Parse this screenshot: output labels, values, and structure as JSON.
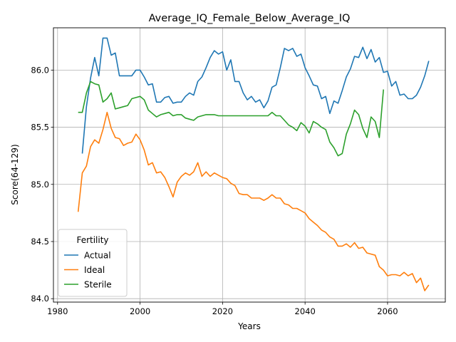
{
  "chart_data": {
    "type": "line",
    "title": "Average_IQ_Female_Below_Average_IQ",
    "xlabel": "Years",
    "ylabel": "Score(64-129)",
    "xlim": [
      1979,
      2074
    ],
    "ylim": [
      83.97,
      86.37
    ],
    "xticks": [
      1980,
      2000,
      2020,
      2040,
      2060
    ],
    "yticks": [
      84.0,
      84.5,
      85.0,
      85.5,
      86.0
    ],
    "grid": true,
    "legend": {
      "title": "Fertility",
      "placement": "lower-left"
    },
    "series": [
      {
        "name": "Actual",
        "color": "#1f77b4",
        "x": [
          1986,
          1987,
          1988,
          1989,
          1990,
          1991,
          1992,
          1993,
          1994,
          1995,
          1996,
          1997,
          1998,
          1999,
          2000,
          2001,
          2002,
          2003,
          2004,
          2005,
          2006,
          2007,
          2008,
          2009,
          2010,
          2011,
          2012,
          2013,
          2014,
          2015,
          2016,
          2017,
          2018,
          2019,
          2020,
          2021,
          2022,
          2023,
          2024,
          2025,
          2026,
          2027,
          2028,
          2029,
          2030,
          2031,
          2032,
          2033,
          2034,
          2035,
          2036,
          2037,
          2038,
          2039,
          2040,
          2041,
          2042,
          2043,
          2044,
          2045,
          2046,
          2047,
          2048,
          2049,
          2050,
          2051,
          2052,
          2053,
          2054,
          2055,
          2056,
          2057,
          2058,
          2059,
          2060,
          2061,
          2062,
          2063,
          2064,
          2065,
          2066,
          2067,
          2068,
          2069,
          2070
        ],
        "y": [
          85.27,
          85.68,
          85.93,
          86.11,
          85.95,
          86.28,
          86.28,
          86.13,
          86.15,
          85.95,
          85.95,
          85.95,
          85.95,
          86.0,
          86.0,
          85.94,
          85.87,
          85.88,
          85.72,
          85.72,
          85.76,
          85.77,
          85.71,
          85.72,
          85.72,
          85.77,
          85.8,
          85.78,
          85.9,
          85.94,
          86.02,
          86.11,
          86.17,
          86.14,
          86.16,
          86.0,
          86.09,
          85.9,
          85.9,
          85.8,
          85.74,
          85.77,
          85.72,
          85.74,
          85.67,
          85.73,
          85.85,
          85.87,
          86.02,
          86.19,
          86.17,
          86.19,
          86.12,
          86.14,
          86.02,
          85.95,
          85.87,
          85.86,
          85.75,
          85.77,
          85.62,
          85.73,
          85.71,
          85.82,
          85.94,
          86.01,
          86.12,
          86.11,
          86.2,
          86.1,
          86.18,
          86.07,
          86.11,
          85.98,
          85.99,
          85.86,
          85.9,
          85.78,
          85.79,
          85.75,
          85.75,
          85.78,
          85.85,
          85.95,
          86.08
        ]
      },
      {
        "name": "Ideal",
        "color": "#ff7f0e",
        "x": [
          1985,
          1986,
          1987,
          1988,
          1989,
          1990,
          1991,
          1992,
          1993,
          1994,
          1995,
          1996,
          1997,
          1998,
          1999,
          2000,
          2001,
          2002,
          2003,
          2004,
          2005,
          2006,
          2007,
          2008,
          2009,
          2010,
          2011,
          2012,
          2013,
          2014,
          2015,
          2016,
          2017,
          2018,
          2019,
          2020,
          2021,
          2022,
          2023,
          2024,
          2025,
          2026,
          2027,
          2028,
          2029,
          2030,
          2031,
          2032,
          2033,
          2034,
          2035,
          2036,
          2037,
          2038,
          2039,
          2040,
          2041,
          2042,
          2043,
          2044,
          2045,
          2046,
          2047,
          2048,
          2049,
          2050,
          2051,
          2052,
          2053,
          2054,
          2055,
          2056,
          2057,
          2058,
          2059,
          2060,
          2061,
          2062,
          2063,
          2064,
          2065,
          2066,
          2067,
          2068,
          2069,
          2070
        ],
        "y": [
          84.76,
          85.1,
          85.16,
          85.33,
          85.39,
          85.36,
          85.48,
          85.63,
          85.49,
          85.41,
          85.4,
          85.34,
          85.36,
          85.37,
          85.44,
          85.39,
          85.3,
          85.17,
          85.19,
          85.1,
          85.11,
          85.06,
          84.98,
          84.89,
          85.02,
          85.07,
          85.1,
          85.08,
          85.11,
          85.19,
          85.07,
          85.11,
          85.07,
          85.1,
          85.08,
          85.06,
          85.05,
          85.01,
          84.99,
          84.92,
          84.91,
          84.91,
          84.88,
          84.88,
          84.88,
          84.86,
          84.88,
          84.91,
          84.88,
          84.88,
          84.83,
          84.82,
          84.79,
          84.79,
          84.77,
          84.75,
          84.7,
          84.67,
          84.64,
          84.6,
          84.58,
          84.54,
          84.52,
          84.46,
          84.46,
          84.48,
          84.45,
          84.49,
          84.44,
          84.45,
          84.4,
          84.39,
          84.38,
          84.28,
          84.25,
          84.2,
          84.21,
          84.21,
          84.2,
          84.23,
          84.2,
          84.22,
          84.14,
          84.18,
          84.07,
          84.12
        ]
      },
      {
        "name": "Sterile",
        "color": "#2ca02c",
        "x": [
          1985,
          1986,
          1987,
          1988,
          1989,
          1990,
          1991,
          1992,
          1993,
          1994,
          1995,
          1996,
          1997,
          1998,
          1999,
          2000,
          2001,
          2002,
          2003,
          2004,
          2005,
          2006,
          2007,
          2008,
          2009,
          2010,
          2011,
          2012,
          2013,
          2014,
          2015,
          2016,
          2017,
          2018,
          2019,
          2020,
          2021,
          2022,
          2023,
          2024,
          2025,
          2026,
          2027,
          2028,
          2029,
          2030,
          2031,
          2032,
          2033,
          2034,
          2035,
          2036,
          2037,
          2038,
          2039,
          2040,
          2041,
          2042,
          2043,
          2044,
          2045,
          2046,
          2047,
          2048,
          2049,
          2050,
          2051,
          2052,
          2053,
          2054,
          2055,
          2056,
          2057,
          2058,
          2059
        ],
        "y": [
          85.63,
          85.63,
          85.8,
          85.9,
          85.88,
          85.87,
          85.72,
          85.75,
          85.8,
          85.66,
          85.67,
          85.68,
          85.69,
          85.75,
          85.76,
          85.77,
          85.74,
          85.65,
          85.62,
          85.59,
          85.61,
          85.62,
          85.63,
          85.6,
          85.61,
          85.61,
          85.58,
          85.57,
          85.56,
          85.59,
          85.6,
          85.61,
          85.61,
          85.61,
          85.6,
          85.6,
          85.6,
          85.6,
          85.6,
          85.6,
          85.6,
          85.6,
          85.6,
          85.6,
          85.6,
          85.6,
          85.6,
          85.63,
          85.6,
          85.6,
          85.56,
          85.52,
          85.5,
          85.47,
          85.54,
          85.51,
          85.45,
          85.55,
          85.53,
          85.5,
          85.48,
          85.37,
          85.32,
          85.25,
          85.27,
          85.44,
          85.53,
          85.65,
          85.61,
          85.49,
          85.41,
          85.59,
          85.55,
          85.41,
          85.83
        ]
      }
    ]
  }
}
